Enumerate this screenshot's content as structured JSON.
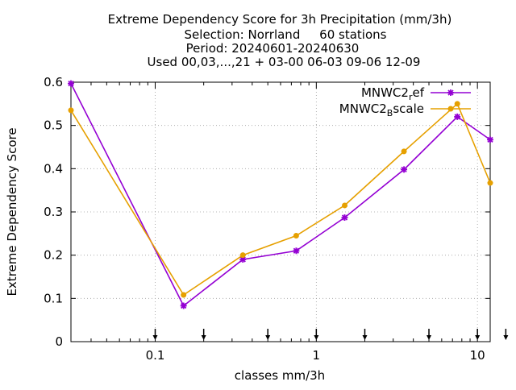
{
  "chart_data": {
    "type": "line",
    "title_lines": [
      "Extreme Dependency Score  for 3h Precipitation (mm/3h)",
      "Selection: Norrland     60 stations",
      "Period: 20240601-20240630",
      "Used 00,03,...,21 + 03-00 06-03 09-06 12-09"
    ],
    "xlabel": "classes mm/3h",
    "ylabel": "Extreme Dependency Score",
    "x_scale": "log",
    "xlim": [
      0.03,
      12
    ],
    "ylim": [
      0,
      0.6
    ],
    "x_ticks": [
      {
        "value": 0.1,
        "label": "0.1"
      },
      {
        "value": 1,
        "label": "1"
      },
      {
        "value": 10,
        "label": "10"
      }
    ],
    "y_ticks": [
      {
        "value": 0,
        "label": "0"
      },
      {
        "value": 0.1,
        "label": "0.1"
      },
      {
        "value": 0.2,
        "label": "0.2"
      },
      {
        "value": 0.3,
        "label": "0.3"
      },
      {
        "value": 0.4,
        "label": "0.4"
      },
      {
        "value": 0.5,
        "label": "0.5"
      },
      {
        "value": 0.6,
        "label": "0.6"
      }
    ],
    "grid": true,
    "legend_position": "top-right",
    "class_markers": [
      0.1,
      0.2,
      0.5,
      1,
      2,
      5,
      10,
      15
    ],
    "series": [
      {
        "name_main": "MNWC2",
        "name_sub": "r",
        "name_rest": "ef",
        "color": "#9400d3",
        "marker": "star",
        "x": [
          0.03,
          0.15,
          0.35,
          0.75,
          1.5,
          3.5,
          7.5,
          12
        ],
        "y": [
          0.597,
          0.083,
          0.19,
          0.21,
          0.287,
          0.398,
          0.52,
          0.467
        ]
      },
      {
        "name_main": "MNWC2",
        "name_sub": "B",
        "name_rest": "scale",
        "color": "#e6a000",
        "marker": "circle",
        "x": [
          0.03,
          0.15,
          0.35,
          0.75,
          1.5,
          3.5,
          7.5,
          12
        ],
        "y": [
          0.535,
          0.108,
          0.2,
          0.245,
          0.315,
          0.44,
          0.55,
          0.367
        ]
      }
    ]
  }
}
